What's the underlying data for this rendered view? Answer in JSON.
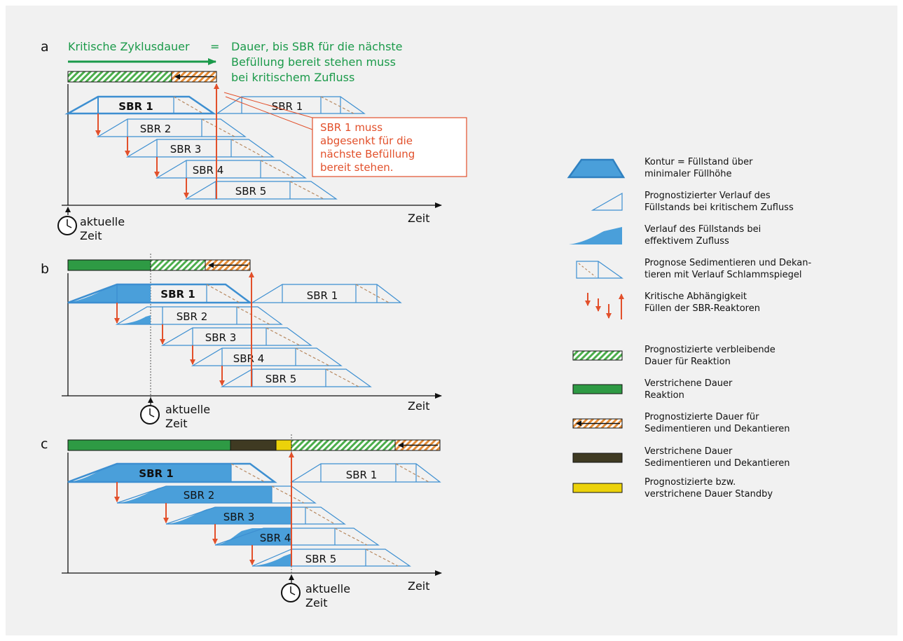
{
  "colors": {
    "background": "#f1f1f1",
    "outline": "#3d8fd1",
    "fill": "#4a9fda",
    "arrow": "#e2502b",
    "green_text": "#1b9a4a",
    "green_bar": "#2e9a44",
    "dark_bar": "#3f3a22",
    "yellow_bar": "#ecd20a",
    "hatch_green": "#4cae4c",
    "hatch_orange": "#e38b35",
    "axis": "#111111",
    "text": "#111111"
  },
  "panel_a": {
    "letter": "a",
    "header_left": "Kritische Zyklusdauer",
    "header_eq": "=",
    "header_right": [
      "Dauer, bis SBR für die nächste",
      "Befüllung bereit stehen muss",
      "bei kritischem Zufluss"
    ],
    "reactor_labels": [
      "SBR 1",
      "SBR 2",
      "SBR 3",
      "SBR 4",
      "SBR 5",
      "SBR 1"
    ],
    "callout": [
      "SBR 1 muss",
      "abgesenkt für die",
      "nächste Befüllung",
      "bereit stehen."
    ],
    "clock_label": [
      "aktuelle",
      "Zeit"
    ],
    "axis_label": "Zeit"
  },
  "panel_b": {
    "letter": "b",
    "reactor_labels": [
      "SBR 1",
      "SBR 2",
      "SBR 3",
      "SBR 4",
      "SBR 5",
      "SBR 1"
    ],
    "clock_label": [
      "aktuelle",
      "Zeit"
    ],
    "axis_label": "Zeit"
  },
  "panel_c": {
    "letter": "c",
    "reactor_labels": [
      "SBR 1",
      "SBR 2",
      "SBR 3",
      "SBR 4",
      "SBR 5",
      "SBR 1"
    ],
    "clock_label": [
      "aktuelle",
      "Zeit"
    ],
    "axis_label": "Zeit"
  },
  "legend": [
    {
      "icon": "contour-fill-icon",
      "lines": [
        "Kontur = Füllstand über",
        "minimaler Füllhöhe"
      ]
    },
    {
      "icon": "predicted-fill-triangle-icon",
      "lines": [
        "Prognostizierter Verlauf des",
        "Füllstands bei kritischem Zufluss"
      ]
    },
    {
      "icon": "effective-fill-curve-icon",
      "lines": [
        "Verlauf des Füllstands bei",
        "effektivem Zufluss"
      ]
    },
    {
      "icon": "sediment-decant-icon",
      "lines": [
        "Prognose Sedimentieren und Dekan-",
        "tieren mit Verlauf Schlammspiegel"
      ]
    },
    {
      "icon": "critical-dependency-arrows-icon",
      "lines": [
        "Kritische Abhängigkeit",
        "Füllen der SBR-Reaktoren"
      ]
    },
    {
      "icon": "green-hatch-bar-icon",
      "lines": [
        "Prognostizierte verbleibende",
        "Dauer für Reaktion"
      ]
    },
    {
      "icon": "green-solid-bar-icon",
      "lines": [
        "Verstrichene Dauer",
        "Reaktion"
      ]
    },
    {
      "icon": "orange-hatch-bar-icon",
      "lines": [
        "Prognostizierte Dauer für",
        "Sedimentieren und Dekantieren"
      ]
    },
    {
      "icon": "dark-solid-bar-icon",
      "lines": [
        "Verstrichene Dauer",
        "Sedimentieren und Dekantieren"
      ]
    },
    {
      "icon": "yellow-solid-bar-icon",
      "lines": [
        "Prognostizierte bzw.",
        "verstrichene Dauer Standby"
      ]
    }
  ]
}
